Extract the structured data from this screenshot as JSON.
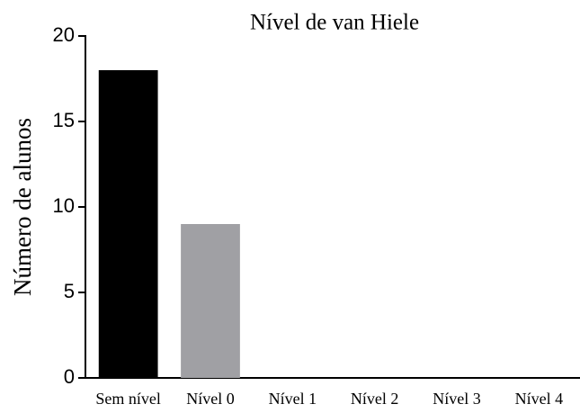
{
  "chart_data": {
    "type": "bar",
    "title": "Nível de van Hiele",
    "ylabel": "Número de alunos",
    "categories": [
      "Sem nível",
      "Nível 0",
      "Nível 1",
      "Nível 2",
      "Nível 3",
      "Nível 4"
    ],
    "values": [
      18,
      9,
      0,
      0,
      0,
      0
    ],
    "colors": [
      "#000000",
      "#a0a0a4"
    ],
    "ylim": [
      0,
      20
    ],
    "yticks": [
      0,
      5,
      10,
      15,
      20
    ],
    "grid": false
  }
}
